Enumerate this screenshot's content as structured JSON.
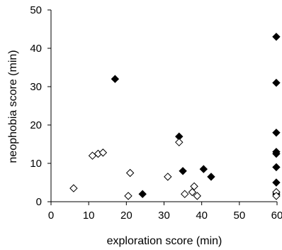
{
  "chart_data": {
    "type": "scatter",
    "title": "",
    "xlabel": "exploration score (min)",
    "ylabel": "neophobia score (min)",
    "xlim": [
      0,
      60
    ],
    "ylim": [
      0,
      50
    ],
    "x_ticks": [
      "0",
      "10",
      "20",
      "30",
      "40",
      "50",
      "60"
    ],
    "y_ticks": [
      "0",
      "10",
      "20",
      "30",
      "40",
      "50"
    ],
    "grid": false,
    "legend": "none",
    "series": [
      {
        "marker": "filled-diamond",
        "color": "#000000",
        "points": [
          {
            "x": 17,
            "y": 32
          },
          {
            "x": 24.3,
            "y": 2
          },
          {
            "x": 34,
            "y": 17
          },
          {
            "x": 35,
            "y": 8
          },
          {
            "x": 40.5,
            "y": 8.5
          },
          {
            "x": 42.5,
            "y": 6.5
          },
          {
            "x": 59.8,
            "y": 43
          },
          {
            "x": 59.8,
            "y": 31
          },
          {
            "x": 59.8,
            "y": 18
          },
          {
            "x": 59.8,
            "y": 13
          },
          {
            "x": 59.8,
            "y": 12.5
          },
          {
            "x": 59.8,
            "y": 9
          },
          {
            "x": 59.8,
            "y": 5
          },
          {
            "x": 59.8,
            "y": 2
          }
        ]
      },
      {
        "marker": "open-diamond",
        "color": "#000000",
        "points": [
          {
            "x": 6,
            "y": 3.5
          },
          {
            "x": 11,
            "y": 12
          },
          {
            "x": 12.5,
            "y": 12.5
          },
          {
            "x": 13.8,
            "y": 12.8
          },
          {
            "x": 21,
            "y": 7.5
          },
          {
            "x": 20.5,
            "y": 1.5
          },
          {
            "x": 31,
            "y": 6.5
          },
          {
            "x": 34,
            "y": 15.5
          },
          {
            "x": 35.5,
            "y": 2
          },
          {
            "x": 37.5,
            "y": 2.5
          },
          {
            "x": 38,
            "y": 4
          },
          {
            "x": 38.8,
            "y": 1.5
          },
          {
            "x": 59.8,
            "y": 2.5
          },
          {
            "x": 59.8,
            "y": 1.5
          }
        ]
      }
    ]
  }
}
